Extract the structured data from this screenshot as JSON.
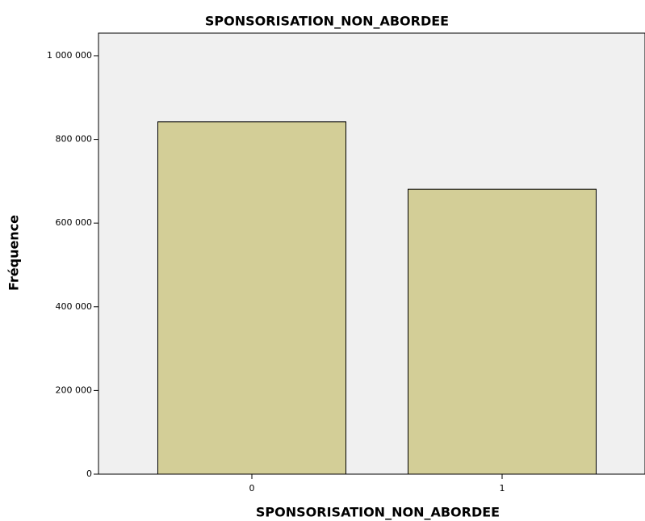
{
  "chart_data": {
    "type": "bar",
    "title": "SPONSORISATION_NON_ABORDEE",
    "x_label": "SPONSORISATION_NON_ABORDEE",
    "y_label": "Fréquence",
    "categories": [
      "0",
      "1"
    ],
    "values": [
      842000,
      681000
    ],
    "color": "#d3ce97",
    "ylim": [
      0,
      1054000
    ],
    "yticks": [
      0,
      {
        "value": 200000,
        "label": "200 000"
      },
      {
        "value": 400000,
        "label": "400 000"
      },
      {
        "value": 600000,
        "label": "600 000"
      },
      {
        "value": 800000,
        "label": "800 000"
      },
      {
        "value": 1000000,
        "label": "1 000 000"
      }
    ]
  }
}
